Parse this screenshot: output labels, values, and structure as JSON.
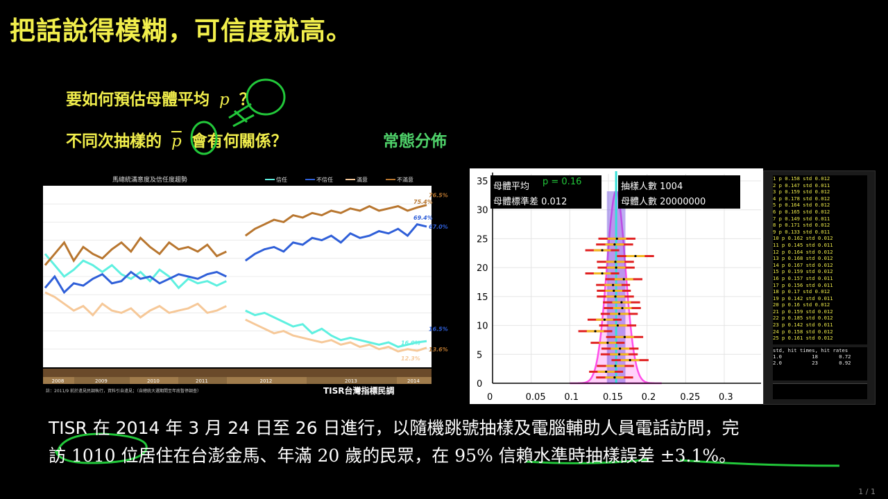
{
  "slide": {
    "title": "把話說得模糊，可信度就高。",
    "q1_prefix": "要如何預估母體平均",
    "q1_var": "p",
    "q1_suffix": "？",
    "q2_prefix": "不同次抽樣的",
    "q2_var": "p",
    "q2_suffix": "會有何關係？",
    "annotation_normal": "常態分佈",
    "note_part1": "TISR 在 2014 年 3 月 24 日至 26 日進行，以隨機跳號抽樣及電腦輔助人員電話訪問，完",
    "note_part2a": "訪 ",
    "note_sample": "1010",
    "note_part2b": " 位居住在台澎金馬、年滿 ",
    "note_age": "20",
    "note_part2c": " 歲的民眾，在 ",
    "note_conf": "95%",
    "note_part2d": " 信賴水準時抽樣誤差 ",
    "note_err": "±3.1%",
    "note_end": "。",
    "page": "1 / 1",
    "highlight_color": "#f2ef4c",
    "marker_color": "#22c83a"
  },
  "chart_data": [
    {
      "type": "line",
      "title": "馬總統滿意度及信任度趨勢",
      "legend": [
        "信任",
        "不信任",
        "滿意",
        "不滿意"
      ],
      "legend_placement": "top-right",
      "colors": [
        "#5ef0e0",
        "#2f5fd8",
        "#f6c898",
        "#b8762f"
      ],
      "end_labels": [
        "76.5%",
        "75.4%",
        "69.4%",
        "67.0%",
        "16.5%",
        "16.0%",
        "13.6%",
        "12.3%"
      ],
      "years": [
        "2008",
        "2009",
        "2010",
        "2011",
        "2012",
        "2013",
        "2014"
      ],
      "footnote": "註：2011/9 前於遠見民調執行，資料引自遠見；（自總統大選期間至年底暫停調查）",
      "brand": "TISR台灣指標民調",
      "series": [
        {
          "name": "信任",
          "values": [
            55,
            50,
            45,
            48,
            52,
            50,
            47,
            50,
            46,
            44,
            47,
            43,
            48,
            45,
            40,
            44,
            42,
            43,
            41,
            43,
            null,
            30,
            28,
            29,
            27,
            25,
            23,
            24,
            20,
            22,
            19,
            17,
            18,
            17,
            16,
            15,
            16,
            14,
            15,
            16,
            16.5
          ]
        },
        {
          "name": "不信任",
          "values": [
            40,
            45,
            38,
            42,
            41,
            44,
            46,
            42,
            43,
            47,
            44,
            45,
            42,
            44,
            46,
            45,
            44,
            46,
            47,
            45,
            null,
            52,
            55,
            57,
            58,
            56,
            60,
            59,
            62,
            61,
            63,
            60,
            64,
            62,
            63,
            65,
            64,
            66,
            63,
            68,
            67.0
          ]
        },
        {
          "name": "滿意",
          "values": [
            38,
            36,
            33,
            30,
            32,
            28,
            33,
            30,
            29,
            31,
            27,
            30,
            32,
            29,
            30,
            31,
            33,
            29,
            30,
            32,
            null,
            26,
            24,
            22,
            20,
            21,
            19,
            18,
            17,
            16,
            17,
            15,
            16,
            14,
            15,
            13,
            14,
            12,
            13,
            12.3,
            13.6
          ]
        },
        {
          "name": "不滿意",
          "values": [
            50,
            55,
            60,
            52,
            58,
            55,
            53,
            57,
            60,
            56,
            62,
            58,
            55,
            60,
            57,
            58,
            56,
            59,
            54,
            56,
            null,
            63,
            66,
            68,
            70,
            69,
            72,
            71,
            73,
            72,
            74,
            73,
            75,
            74,
            76,
            74,
            75,
            76,
            74,
            75.4,
            76.5
          ]
        }
      ]
    },
    {
      "type": "scatter",
      "xlim": [
        0,
        0.3
      ],
      "ylim": [
        0,
        35
      ],
      "x_ticks": [
        "0",
        "0.05",
        "0.1",
        "0.15",
        "0.2",
        "0.25",
        "0.3"
      ],
      "y_ticks": [
        "0",
        "5",
        "10",
        "15",
        "20",
        "25",
        "30",
        "35"
      ],
      "info_left": [
        "母體平均",
        "母體標準差 0.012"
      ],
      "p_label": "p = 0.16",
      "info_right": [
        "抽樣人數 1004",
        "母體人數 20000000"
      ],
      "mean": 0.16,
      "std": 0.012,
      "samples": [
        {
          "n": 1,
          "p": 0.158,
          "std": 0.012
        },
        {
          "n": 2,
          "p": 0.147,
          "std": 0.011
        },
        {
          "n": 3,
          "p": 0.159,
          "std": 0.012
        },
        {
          "n": 4,
          "p": 0.178,
          "std": 0.012
        },
        {
          "n": 5,
          "p": 0.164,
          "std": 0.012
        },
        {
          "n": 6,
          "p": 0.165,
          "std": 0.012
        },
        {
          "n": 7,
          "p": 0.149,
          "std": 0.011
        },
        {
          "n": 8,
          "p": 0.171,
          "std": 0.012
        },
        {
          "n": 9,
          "p": 0.133,
          "std": 0.011
        },
        {
          "n": 10,
          "p": 0.162,
          "std": 0.012
        },
        {
          "n": 11,
          "p": 0.145,
          "std": 0.011
        },
        {
          "n": 12,
          "p": 0.164,
          "std": 0.012
        },
        {
          "n": 13,
          "p": 0.168,
          "std": 0.012
        },
        {
          "n": 14,
          "p": 0.167,
          "std": 0.012
        },
        {
          "n": 15,
          "p": 0.159,
          "std": 0.012
        },
        {
          "n": 16,
          "p": 0.157,
          "std": 0.011
        },
        {
          "n": 17,
          "p": 0.156,
          "std": 0.011
        },
        {
          "n": 18,
          "p": 0.17,
          "std": 0.012
        },
        {
          "n": 19,
          "p": 0.142,
          "std": 0.011
        },
        {
          "n": 20,
          "p": 0.16,
          "std": 0.012
        },
        {
          "n": 21,
          "p": 0.159,
          "std": 0.012
        },
        {
          "n": 22,
          "p": 0.185,
          "std": 0.012
        },
        {
          "n": 23,
          "p": 0.142,
          "std": 0.011
        },
        {
          "n": 24,
          "p": 0.158,
          "std": 0.012
        },
        {
          "n": 25,
          "p": 0.161,
          "std": 0.012
        }
      ],
      "console_lines": [
        "1 p 0.158 std 0.012",
        "2 p 0.147 std 0.011",
        "3 p 0.159 std 0.012",
        "4 p 0.178 std 0.012",
        "5 p 0.164 std 0.012",
        "6 p 0.165 std 0.012",
        "7 p 0.149 std 0.011",
        "8 p 0.171 std 0.012",
        "9 p 0.133 std 0.011",
        "10 p 0.162 std 0.012",
        "11 p 0.145 std 0.011",
        "12 p 0.164 std 0.012",
        "13 p 0.168 std 0.012",
        "14 p 0.167 std 0.012",
        "15 p 0.159 std 0.012",
        "16 p 0.157 std 0.011",
        "17 p 0.156 std 0.011",
        "18 p 0.17 std 0.012",
        "19 p 0.142 std 0.011",
        "20 p 0.16 std 0.012",
        "21 p 0.159 std 0.012",
        "22 p 0.185 std 0.012",
        "23 p 0.142 std 0.011",
        "24 p 0.158 std 0.012",
        "25 p 0.161 std 0.012"
      ],
      "summary_header": "std, hit times, hit rates",
      "summary_rows": [
        "1.0          18       0.72",
        "2.0          23       0.92"
      ]
    }
  ]
}
